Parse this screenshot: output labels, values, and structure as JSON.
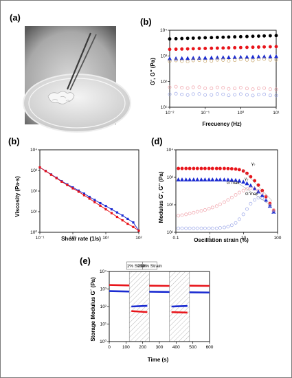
{
  "panels": {
    "a": {
      "label": "(a)",
      "photo": "hydrogel-petri-dish-photo"
    },
    "b_top": {
      "label": "(b)"
    },
    "b_left": {
      "label": "(b)"
    },
    "d": {
      "label": "(d)"
    },
    "e": {
      "label": "(e)"
    }
  },
  "chart_data": [
    {
      "id": "b_top",
      "type": "scatter",
      "xlabel": "Frecuency (Hz)",
      "ylabel": "G', G'' (Pa)",
      "xscale": "log",
      "yscale": "log",
      "xlim": [
        0.01,
        10
      ],
      "ylim": [
        10,
        10000
      ],
      "xticks": [
        "10⁻²",
        "10⁻¹",
        "10⁰",
        "10¹"
      ],
      "yticks": [
        "10¹",
        "10²",
        "10³",
        "10⁴"
      ],
      "x": [
        0.01,
        0.015,
        0.022,
        0.032,
        0.046,
        0.068,
        0.1,
        0.15,
        0.22,
        0.32,
        0.46,
        0.68,
        1,
        1.5,
        2.2,
        3.2,
        4.6,
        6.8,
        10
      ],
      "series": [
        {
          "color": "#000000",
          "marker": "circle",
          "filled": true,
          "start": 4600,
          "end": 6200
        },
        {
          "color": "#e8141a",
          "marker": "circle",
          "filled": true,
          "start": 1800,
          "end": 2300
        },
        {
          "color": "#1a2bd1",
          "marker": "triangle",
          "filled": true,
          "start": 780,
          "end": 950
        },
        {
          "color": "#c8a66a",
          "marker": "circle",
          "filled": false,
          "start": 620,
          "end": 730
        },
        {
          "color": "#f0a0a8",
          "marker": "circle",
          "filled": false,
          "start": 60,
          "end": 52
        },
        {
          "color": "#9aa6e8",
          "marker": "circle",
          "filled": false,
          "start": 32,
          "end": 30
        }
      ]
    },
    {
      "id": "b_left",
      "type": "line",
      "xlabel": "Shear rate (1/s)",
      "ylabel": "Viscosity (Pa·s)",
      "xscale": "log",
      "yscale": "log",
      "xlim": [
        0.1,
        100
      ],
      "ylim": [
        1,
        10000
      ],
      "xticks": [
        "10⁻¹",
        "10⁰",
        "10¹",
        "10²"
      ],
      "yticks": [
        "10⁰",
        "10¹",
        "10²",
        "10³",
        "10⁴"
      ],
      "series": [
        {
          "color": "#1a2bd1",
          "x": [
            0.1,
            0.15,
            0.22,
            0.32,
            0.46,
            0.68,
            1,
            1.5,
            2.2,
            3.2,
            4.6,
            6.8,
            10,
            15,
            22,
            32,
            46,
            68,
            100
          ],
          "y": [
            1400,
            950,
            640,
            440,
            300,
            210,
            150,
            105,
            75,
            52,
            37,
            26,
            19,
            13,
            9.2,
            6.5,
            4.5,
            3.0,
            1.2
          ]
        },
        {
          "color": "#e8141a",
          "x": [
            0.1,
            0.15,
            0.22,
            0.32,
            0.46,
            0.68,
            1,
            1.5,
            2.2,
            3.2,
            4.6,
            6.8,
            10,
            15,
            22,
            32,
            46,
            68,
            100
          ],
          "y": [
            1400,
            930,
            620,
            420,
            285,
            195,
            135,
            93,
            63,
            43,
            29,
            19.5,
            13,
            8.5,
            5.6,
            3.8,
            2.6,
            1.8,
            1.2
          ]
        }
      ]
    },
    {
      "id": "d",
      "type": "scatter",
      "xlabel": "Oscillation strain (%)",
      "ylabel": "Modulus G', G'' (Pa)",
      "xscale": "log",
      "yscale": "log",
      "xlim": [
        0.04,
        400
      ],
      "ylim": [
        10,
        10000
      ],
      "xticks": [
        "0.1",
        "1",
        "10",
        "100"
      ],
      "yticks": [
        "10¹",
        "10²",
        "10³",
        "10⁴"
      ],
      "x": [
        0.05,
        0.07,
        0.1,
        0.14,
        0.2,
        0.28,
        0.4,
        0.56,
        0.8,
        1.1,
        1.6,
        2.2,
        3.2,
        4.5,
        6.3,
        9,
        12.5,
        18,
        25,
        35,
        50,
        70,
        100,
        140,
        200,
        280
      ],
      "series": [
        {
          "color": "#e8141a",
          "marker": "circle",
          "filled": true,
          "y": [
            2100,
            2100,
            2100,
            2100,
            2100,
            2100,
            2100,
            2100,
            2100,
            2100,
            2100,
            2100,
            2100,
            2080,
            2050,
            2000,
            1900,
            1700,
            1400,
            1050,
            750,
            520,
            330,
            200,
            110,
            60
          ]
        },
        {
          "color": "#1a2bd1",
          "marker": "triangle",
          "filled": true,
          "y": [
            820,
            820,
            820,
            820,
            820,
            820,
            820,
            820,
            820,
            820,
            820,
            820,
            815,
            810,
            800,
            780,
            740,
            680,
            600,
            500,
            390,
            300,
            220,
            150,
            90,
            55
          ]
        },
        {
          "color": "#f0a0a8",
          "marker": "circle",
          "filled": false,
          "y": [
            40,
            42,
            45,
            48,
            52,
            56,
            60,
            65,
            72,
            80,
            90,
            105,
            125,
            150,
            185,
            230,
            280,
            330,
            380,
            400,
            380,
            330,
            260,
            190,
            120,
            65
          ]
        },
        {
          "color": "#9aa6e8",
          "marker": "circle",
          "filled": false,
          "y": [
            14,
            14,
            14,
            14,
            14,
            14,
            14,
            14,
            14,
            14,
            14,
            14.5,
            15,
            16,
            18,
            22,
            30,
            45,
            70,
            110,
            150,
            180,
            170,
            140,
            95,
            55
          ]
        }
      ],
      "annotations": [
        "γ₀",
        "γ₀",
        "G''max",
        "G''max"
      ]
    },
    {
      "id": "e",
      "type": "line",
      "xlabel": "Time (s)",
      "ylabel": "Storage Modulus G´ (Pa)",
      "yscale": "log",
      "xlim": [
        0,
        600
      ],
      "ylim": [
        1,
        10000
      ],
      "xticks": [
        "0",
        "100",
        "200",
        "300",
        "400",
        "500",
        "600"
      ],
      "yticks": [
        "10⁰",
        "10¹",
        "10²",
        "10³",
        "10⁴"
      ],
      "bands": [
        [
          120,
          240
        ],
        [
          360,
          480
        ]
      ],
      "band_labels": [
        "1% Strain",
        "250% Strain"
      ],
      "segments": [
        {
          "color": "#e8141a",
          "x": [
            0,
            120
          ],
          "y": [
            1700,
            1600
          ]
        },
        {
          "color": "#1a2bd1",
          "x": [
            0,
            120
          ],
          "y": [
            760,
            720
          ]
        },
        {
          "color": "#1a2bd1",
          "x": [
            120,
            240
          ],
          "y": [
            100,
            110
          ]
        },
        {
          "color": "#e8141a",
          "x": [
            120,
            240
          ],
          "y": [
            55,
            48
          ]
        },
        {
          "color": "#e8141a",
          "x": [
            240,
            360
          ],
          "y": [
            1550,
            1500
          ]
        },
        {
          "color": "#1a2bd1",
          "x": [
            240,
            360
          ],
          "y": [
            700,
            680
          ]
        },
        {
          "color": "#1a2bd1",
          "x": [
            360,
            480
          ],
          "y": [
            100,
            108
          ]
        },
        {
          "color": "#e8141a",
          "x": [
            360,
            480
          ],
          "y": [
            48,
            45
          ]
        },
        {
          "color": "#e8141a",
          "x": [
            480,
            600
          ],
          "y": [
            1550,
            1500
          ]
        },
        {
          "color": "#1a2bd1",
          "x": [
            480,
            600
          ],
          "y": [
            650,
            630
          ]
        }
      ]
    }
  ]
}
